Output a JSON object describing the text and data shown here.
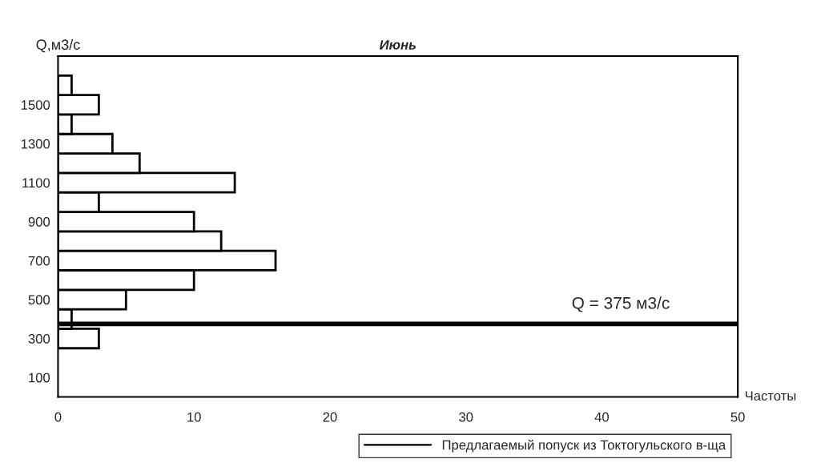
{
  "chart_data": {
    "type": "histogram",
    "orientation": "horizontal",
    "title": "Июнь",
    "ylabel": "Q,м3/с",
    "xlabel": "Частоты",
    "bins": [
      250,
      350,
      450,
      550,
      650,
      750,
      850,
      950,
      1050,
      1150,
      1250,
      1350,
      1450,
      1550,
      1650
    ],
    "values": [
      3,
      1,
      5,
      10,
      16,
      12,
      10,
      3,
      13,
      6,
      4,
      1,
      3,
      1
    ],
    "color": "#ffffff",
    "xlim": [
      0,
      50
    ],
    "xticks": [
      0,
      10,
      20,
      30,
      40,
      50
    ],
    "ylim": [
      0,
      1750
    ],
    "yticks": [
      100,
      300,
      500,
      700,
      900,
      1100,
      1300,
      1500
    ],
    "ref_lines": [
      {
        "axis": "y",
        "value": 375,
        "label": "Предлагаемый попуск из Токтогульского в-ща",
        "color": "#000000",
        "line_style": "solid"
      }
    ],
    "annotations": [
      {
        "text": "Q = 375 м3/с",
        "x": 45,
        "y": 375
      }
    ],
    "grid": false,
    "legend": "bottom"
  }
}
